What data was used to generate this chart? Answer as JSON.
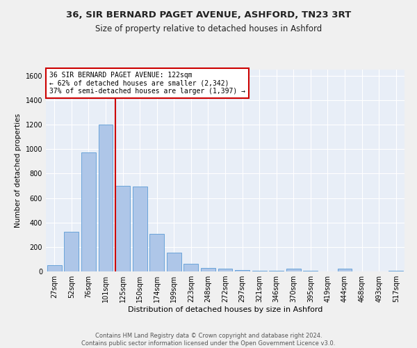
{
  "title1": "36, SIR BERNARD PAGET AVENUE, ASHFORD, TN23 3RT",
  "title2": "Size of property relative to detached houses in Ashford",
  "xlabel": "Distribution of detached houses by size in Ashford",
  "ylabel": "Number of detached properties",
  "bar_labels": [
    "27sqm",
    "52sqm",
    "76sqm",
    "101sqm",
    "125sqm",
    "150sqm",
    "174sqm",
    "199sqm",
    "223sqm",
    "248sqm",
    "272sqm",
    "297sqm",
    "321sqm",
    "346sqm",
    "370sqm",
    "395sqm",
    "419sqm",
    "444sqm",
    "468sqm",
    "493sqm",
    "517sqm"
  ],
  "bar_values": [
    50,
    325,
    975,
    1200,
    700,
    695,
    305,
    155,
    65,
    30,
    25,
    10,
    5,
    5,
    25,
    5,
    0,
    25,
    0,
    0,
    5
  ],
  "bar_color": "#aec6e8",
  "bar_edgecolor": "#5b9bd5",
  "property_bar_index": 4,
  "annotation_text": "36 SIR BERNARD PAGET AVENUE: 122sqm\n← 62% of detached houses are smaller (2,342)\n37% of semi-detached houses are larger (1,397) →",
  "annotation_box_color": "#ffffff",
  "annotation_box_edgecolor": "#cc0000",
  "vline_color": "#cc0000",
  "ylim": [
    0,
    1650
  ],
  "yticks": [
    0,
    200,
    400,
    600,
    800,
    1000,
    1200,
    1400,
    1600
  ],
  "background_color": "#e8eef7",
  "grid_color": "#ffffff",
  "fig_background": "#f0f0f0",
  "footer_text": "Contains HM Land Registry data © Crown copyright and database right 2024.\nContains public sector information licensed under the Open Government Licence v3.0.",
  "title1_fontsize": 9.5,
  "title2_fontsize": 8.5,
  "xlabel_fontsize": 8,
  "ylabel_fontsize": 7.5,
  "tick_fontsize": 7,
  "annotation_fontsize": 7,
  "footer_fontsize": 6
}
